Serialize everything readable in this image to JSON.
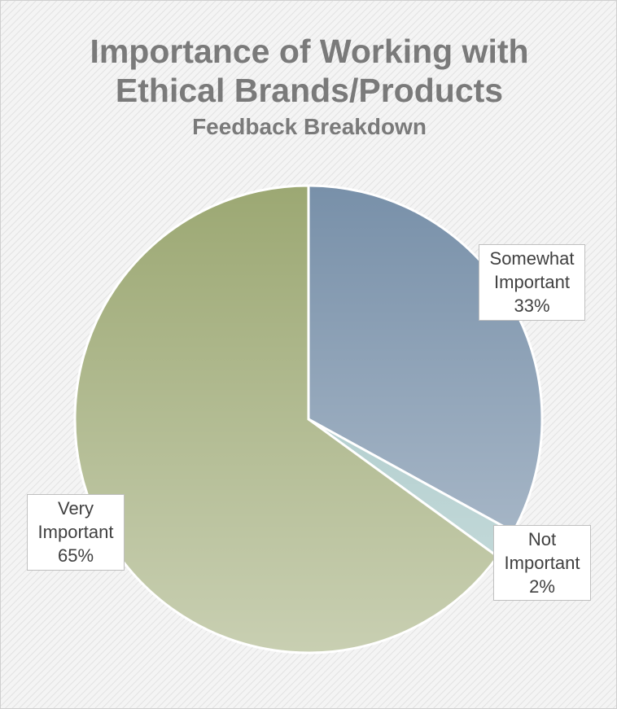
{
  "chart_data": {
    "type": "pie",
    "title": "Importance of Working with Ethical Brands/Products",
    "subtitle": "Feedback Breakdown",
    "categories": [
      "Somewhat Important",
      "Not Important",
      "Very Important"
    ],
    "values": [
      33,
      2,
      65
    ],
    "value_labels": [
      "33%",
      "2%",
      "65%"
    ],
    "colors": [
      "#7890a9",
      "#9fc2c2",
      "#9ca873"
    ]
  }
}
